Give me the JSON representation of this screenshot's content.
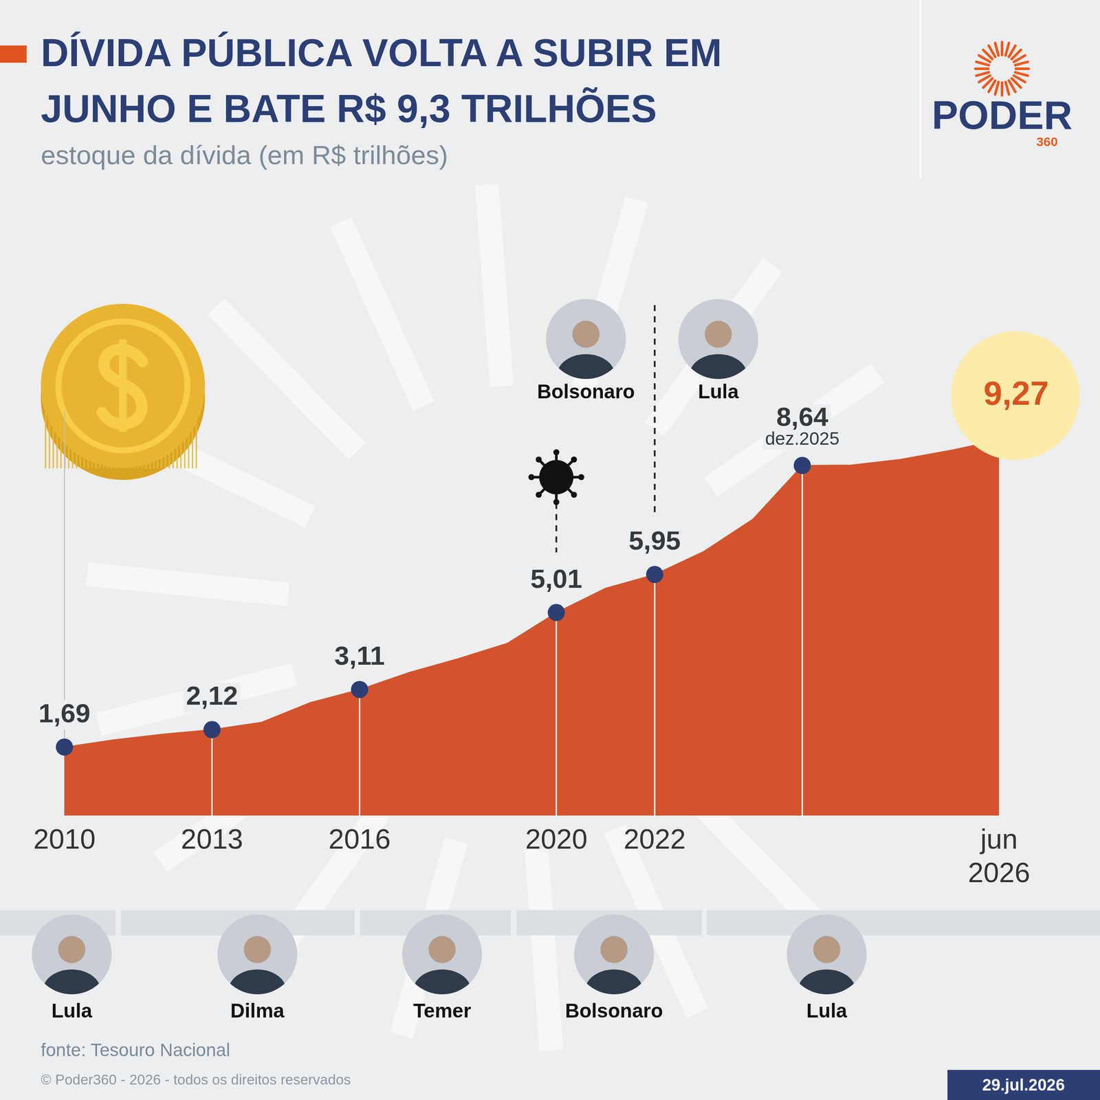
{
  "header": {
    "title": "DÍVIDA PÚBLICA VOLTA A SUBIR EM JUNHO E BATE R$ 9,3 TRILHÕES",
    "subtitle": "estoque da dívida (em R$ trilhões)",
    "logo": "PODER",
    "logo_sub": "360"
  },
  "chart_data": {
    "type": "area",
    "categories": [
      "2010",
      null,
      null,
      "2013",
      null,
      null,
      "2016",
      null,
      null,
      null,
      "2020",
      null,
      "2022",
      null,
      null,
      null,
      null,
      null,
      null,
      "jun 2026"
    ],
    "values": [
      1.69,
      1.87,
      2.01,
      2.12,
      2.3,
      2.79,
      3.11,
      3.53,
      3.87,
      4.25,
      5.01,
      5.61,
      5.95,
      6.52,
      7.32,
      8.64,
      8.65,
      8.79,
      9.01,
      9.27
    ],
    "value_labels": [
      "1,69",
      null,
      null,
      "2,12",
      null,
      null,
      "3,11",
      null,
      null,
      null,
      "5,01",
      null,
      "5,95",
      null,
      null,
      "8,64",
      null,
      null,
      null,
      "9,27"
    ],
    "color": "#d3542c",
    "ylim": [
      0,
      10
    ],
    "grid": false,
    "tick_labels": "x",
    "data_labels": true,
    "annotations": [
      {
        "at": 15,
        "text": "dez.2025"
      },
      {
        "at": 12,
        "left": "Bolsonaro",
        "right": "Lula"
      },
      {
        "at": 10,
        "marker": "virus"
      }
    ]
  },
  "periods": [
    "Lula",
    "Dilma",
    "Temer",
    "Bolsonaro",
    "Lula"
  ],
  "footer": {
    "source": "fonte: Tesouro Nacional",
    "copyright": "© Poder360 - 2026 - todos os direitos reservados",
    "date": "29.jul.2026"
  }
}
